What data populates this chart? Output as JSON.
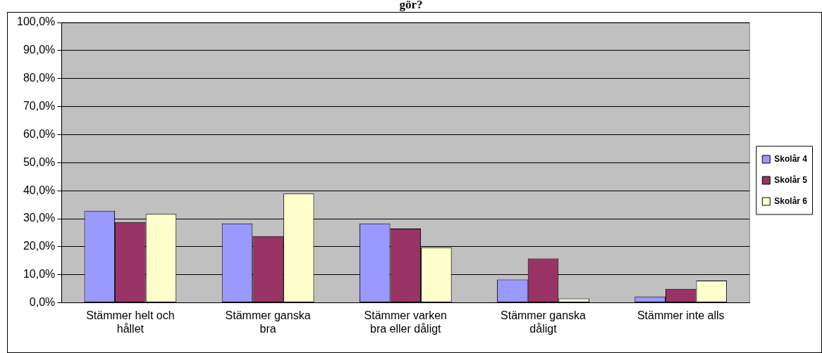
{
  "chart_data": {
    "type": "bar",
    "title": "gör?",
    "categories": [
      "Stämmer helt och hållet",
      "Stämmer ganska bra",
      "Stämmer varken bra eller dåligt",
      "Stämmer ganska dåligt",
      "Stämmer inte alls"
    ],
    "series": [
      {
        "name": "Skolår 4",
        "color": "#9999ff",
        "values": [
          32.8,
          28.3,
          28.3,
          8.3,
          2.2
        ]
      },
      {
        "name": "Skolår 5",
        "color": "#993366",
        "values": [
          28.8,
          23.8,
          26.5,
          15.8,
          5.0
        ]
      },
      {
        "name": "Skolår 6",
        "color": "#ffffcc",
        "values": [
          31.7,
          39.0,
          19.8,
          1.5,
          7.9
        ]
      }
    ],
    "ylim": [
      0,
      100
    ],
    "yticks": [
      {
        "value": 0,
        "label": "0,0%"
      },
      {
        "value": 10,
        "label": "10,0%"
      },
      {
        "value": 20,
        "label": "20,0%"
      },
      {
        "value": 30,
        "label": "30,0%"
      },
      {
        "value": 40,
        "label": "40,0%"
      },
      {
        "value": 50,
        "label": "50,0%"
      },
      {
        "value": 60,
        "label": "60,0%"
      },
      {
        "value": 70,
        "label": "70,0%"
      },
      {
        "value": 80,
        "label": "80,0%"
      },
      {
        "value": 90,
        "label": "90,0%"
      },
      {
        "value": 100,
        "label": "100,0%"
      }
    ],
    "grid": "y",
    "legend": "right"
  }
}
